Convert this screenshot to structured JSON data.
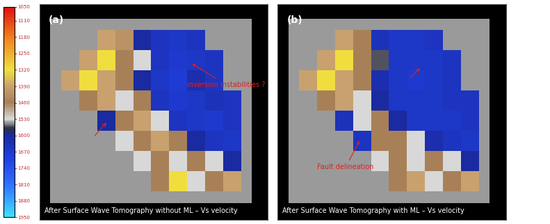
{
  "chart_data": [
    {
      "type": "heatmap",
      "title": "(a)",
      "subtitle": "After Surface Wave Tomography without ML – Vs velocity",
      "annotations": [
        "inversion instabilities ?"
      ],
      "tick_labels": false,
      "colorbar": {
        "range": [
          1050,
          1950
        ],
        "ticks": [
          1050,
          1110,
          1180,
          1250,
          1320,
          1390,
          1460,
          1530,
          1600,
          1670,
          1740,
          1810,
          1880,
          1950
        ]
      },
      "cells": [
        [
          null,
          null,
          1390,
          1420,
          1600,
          1650,
          1660,
          1650,
          null,
          null
        ],
        [
          null,
          1390,
          1320,
          1460,
          1530,
          1650,
          1670,
          1660,
          1650,
          null
        ],
        [
          1390,
          1320,
          1390,
          1460,
          1600,
          1660,
          1680,
          1620,
          1650,
          null
        ],
        [
          null,
          1460,
          1390,
          1530,
          1460,
          1650,
          1670,
          1660,
          1640,
          1650
        ],
        [
          null,
          null,
          1600,
          1460,
          1390,
          1530,
          1650,
          1660,
          1670,
          1650
        ],
        [
          null,
          null,
          null,
          1530,
          1460,
          1390,
          1460,
          1600,
          1650,
          1660
        ],
        [
          null,
          null,
          null,
          null,
          1530,
          1460,
          1530,
          1460,
          1530,
          1600
        ],
        [
          null,
          null,
          null,
          null,
          null,
          1460,
          1320,
          1530,
          1460,
          1390
        ]
      ]
    },
    {
      "type": "heatmap",
      "title": "(b)",
      "subtitle": "After Surface Wave Tomography with ML – Vs velocity",
      "annotations": [
        "Fault delineation"
      ],
      "tick_labels": false,
      "cells": [
        [
          null,
          null,
          1390,
          1460,
          1640,
          1660,
          1660,
          1650,
          null,
          null
        ],
        [
          null,
          1390,
          1320,
          1460,
          1560,
          1660,
          1660,
          1660,
          1650,
          null
        ],
        [
          1390,
          1320,
          1390,
          1460,
          1620,
          1660,
          1670,
          1660,
          1650,
          null
        ],
        [
          null,
          1460,
          1390,
          1530,
          1600,
          1660,
          1660,
          1660,
          1650,
          1650
        ],
        [
          null,
          null,
          1640,
          1530,
          1460,
          1600,
          1660,
          1660,
          1660,
          1650
        ],
        [
          null,
          null,
          null,
          1650,
          1460,
          1460,
          1530,
          1620,
          1650,
          1660
        ],
        [
          null,
          null,
          null,
          null,
          1530,
          1460,
          1530,
          1460,
          1530,
          1600
        ],
        [
          null,
          null,
          null,
          null,
          null,
          1460,
          1390,
          1530,
          1460,
          1390
        ]
      ]
    }
  ]
}
